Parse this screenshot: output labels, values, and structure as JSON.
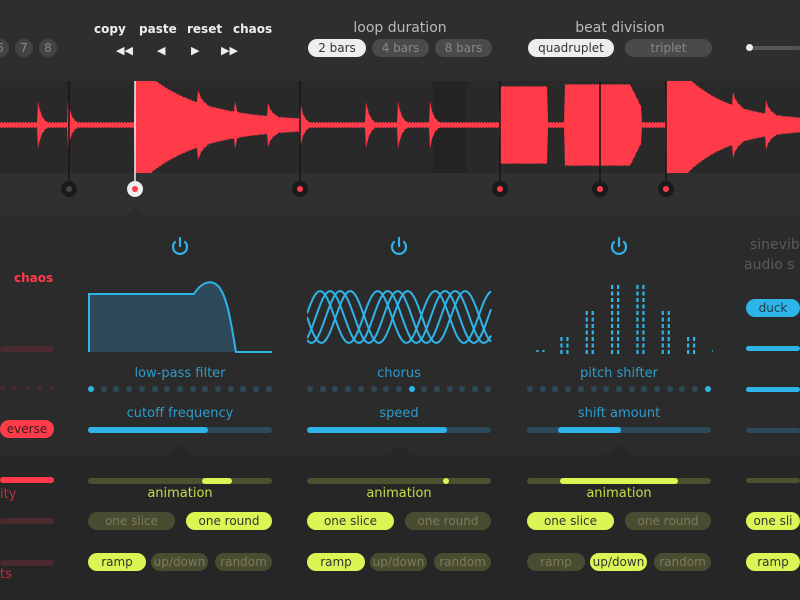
{
  "colors": {
    "accent_red": "#ff3b4a",
    "accent_blue": "#2fb4e9",
    "accent_yellow": "#dcf554"
  },
  "top": {
    "slots": [
      "6",
      "7",
      "8"
    ],
    "actions": {
      "copy": "copy",
      "paste": "paste",
      "reset": "reset",
      "chaos": "chaos"
    },
    "transport": {
      "rewind": "◀◀",
      "prev": "◀",
      "next": "▶",
      "forward": "▶▶"
    },
    "loop_duration": {
      "label": "loop duration",
      "options": [
        "2 bars",
        "4 bars",
        "8 bars"
      ],
      "selected": "2 bars"
    },
    "beat_division": {
      "label": "beat division",
      "options": [
        "quadruplet",
        "triplet"
      ],
      "selected": "quadruplet"
    },
    "volume_level": 0
  },
  "left_partial": {
    "chaos": "chaos",
    "reverse": "everse",
    "label1": "ity",
    "label2": "ts"
  },
  "effects": [
    {
      "name": "low-pass filter",
      "param": "cutoff frequency",
      "param_value": 0.65,
      "type_index": 0,
      "anim_value": [
        0.62,
        0.78
      ],
      "mode": [
        "one slice",
        "one round"
      ],
      "mode_selected": 1,
      "curve": [
        "ramp",
        "up/down",
        "random"
      ],
      "curve_selected": 0,
      "animation_label": "animation",
      "icon": "power-icon"
    },
    {
      "name": "chorus",
      "param": "speed",
      "param_value": 0.76,
      "type_index": 8,
      "anim_value": [
        0.74,
        0.74
      ],
      "mode": [
        "one slice",
        "one round"
      ],
      "mode_selected": 0,
      "curve": [
        "ramp",
        "up/down",
        "random"
      ],
      "curve_selected": 0,
      "animation_label": "animation",
      "icon": "power-icon"
    },
    {
      "name": "pitch shifter",
      "param": "shift amount",
      "param_value_range": [
        0.17,
        0.51
      ],
      "type_index": 14,
      "anim_value": [
        0.18,
        0.82
      ],
      "mode": [
        "one slice",
        "one round"
      ],
      "mode_selected": 0,
      "curve": [
        "ramp",
        "up/down",
        "random"
      ],
      "curve_selected": 1,
      "animation_label": "animation",
      "icon": "power-icon"
    }
  ],
  "right_partial": {
    "brand1": "sinevib",
    "brand2": "audio s",
    "duck": "duck",
    "one_slice": "one sli",
    "ramp": "ramp"
  },
  "markers": [
    {
      "state": "inactive"
    },
    {
      "state": "selected"
    },
    {
      "state": "active"
    },
    {
      "state": "active"
    },
    {
      "state": "active"
    },
    {
      "state": "active"
    }
  ]
}
